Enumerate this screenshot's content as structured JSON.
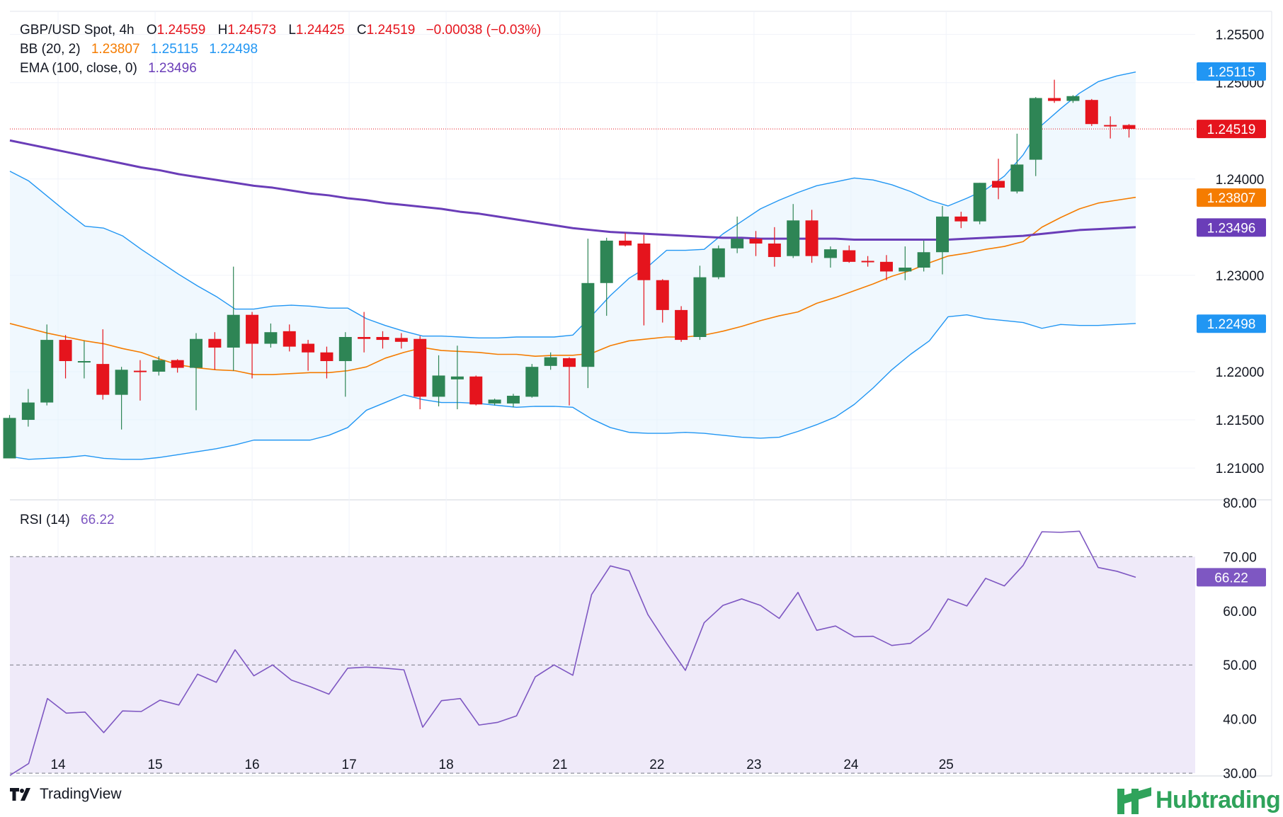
{
  "legend": {
    "symbol": "GBP/USD Spot, 4h",
    "o_label": "O",
    "o_value": "1.24559",
    "h_label": "H",
    "h_value": "1.24573",
    "l_label": "L",
    "l_value": "1.24425",
    "c_label": "C",
    "c_value": "1.24519",
    "change": "−0.00038 (−0.03%)",
    "bb_label": "BB (20, 2)",
    "bb_basis": "1.23807",
    "bb_upper": "1.25115",
    "bb_lower": "1.22498",
    "ema_label": "EMA (100, close, 0)",
    "ema_value": "1.23496",
    "rsi_label": "RSI (14)",
    "rsi_value": "66.22"
  },
  "brand": {
    "tradingview": "TradingView",
    "hubtrading": "Hubtrading"
  },
  "colors": {
    "up": "#2e8555",
    "down": "#e5141d",
    "bb_band": "#2196f3",
    "bb_basis": "#f57c00",
    "ema": "#6a3db8",
    "rsi": "#7e57c2",
    "rsi_fill": "#efeaf9",
    "last_price": "#e5141d",
    "brand_hub": "#2fa35b"
  },
  "chart_data": [
    {
      "type": "candlestick",
      "title": "GBP/USD Spot, 4h",
      "x_ticks": [
        "14",
        "15",
        "16",
        "17",
        "18",
        "21",
        "22",
        "23",
        "24",
        "25"
      ],
      "y_ticks": [
        "1.25500",
        "1.25000",
        "1.24000",
        "1.23000",
        "1.22000",
        "1.21500",
        "1.21000"
      ],
      "ylim": [
        1.2067,
        1.2574
      ],
      "price_tags": [
        {
          "label": "1.25115",
          "value": 1.25115,
          "color": "#2196f3"
        },
        {
          "label": "1.24519",
          "value": 1.24519,
          "color": "#e5141d"
        },
        {
          "label": "1.23807",
          "value": 1.23807,
          "color": "#f57c00"
        },
        {
          "label": "1.23496",
          "value": 1.23496,
          "color": "#6a3db8"
        },
        {
          "label": "1.22498",
          "value": 1.22498,
          "color": "#2196f3"
        }
      ],
      "candles": [
        {
          "o": 1.211,
          "h": 1.2155,
          "l": 1.211,
          "c": 1.2152
        },
        {
          "o": 1.215,
          "h": 1.2182,
          "l": 1.2143,
          "c": 1.2168
        },
        {
          "o": 1.2168,
          "h": 1.2249,
          "l": 1.2165,
          "c": 1.2233
        },
        {
          "o": 1.2233,
          "h": 1.2238,
          "l": 1.2193,
          "c": 1.2211
        },
        {
          "o": 1.221,
          "h": 1.2232,
          "l": 1.2193,
          "c": 1.2211
        },
        {
          "o": 1.2208,
          "h": 1.2244,
          "l": 1.2171,
          "c": 1.2176
        },
        {
          "o": 1.2176,
          "h": 1.2205,
          "l": 1.214,
          "c": 1.2202
        },
        {
          "o": 1.2201,
          "h": 1.2212,
          "l": 1.217,
          "c": 1.22
        },
        {
          "o": 1.22,
          "h": 1.2216,
          "l": 1.2196,
          "c": 1.2212
        },
        {
          "o": 1.2212,
          "h": 1.2213,
          "l": 1.2199,
          "c": 1.2204
        },
        {
          "o": 1.2204,
          "h": 1.224,
          "l": 1.216,
          "c": 1.2234
        },
        {
          "o": 1.2234,
          "h": 1.2241,
          "l": 1.2202,
          "c": 1.2225
        },
        {
          "o": 1.2225,
          "h": 1.2309,
          "l": 1.2201,
          "c": 1.2259
        },
        {
          "o": 1.2259,
          "h": 1.2262,
          "l": 1.2193,
          "c": 1.2229
        },
        {
          "o": 1.2229,
          "h": 1.225,
          "l": 1.2225,
          "c": 1.2241
        },
        {
          "o": 1.2242,
          "h": 1.2249,
          "l": 1.2221,
          "c": 1.2226
        },
        {
          "o": 1.2229,
          "h": 1.2233,
          "l": 1.2201,
          "c": 1.222
        },
        {
          "o": 1.222,
          "h": 1.2226,
          "l": 1.2193,
          "c": 1.2211
        },
        {
          "o": 1.2211,
          "h": 1.2241,
          "l": 1.2174,
          "c": 1.2236
        },
        {
          "o": 1.2236,
          "h": 1.2262,
          "l": 1.222,
          "c": 1.2234
        },
        {
          "o": 1.2236,
          "h": 1.2242,
          "l": 1.2224,
          "c": 1.2233
        },
        {
          "o": 1.2235,
          "h": 1.224,
          "l": 1.2224,
          "c": 1.2231
        },
        {
          "o": 1.2234,
          "h": 1.2237,
          "l": 1.2161,
          "c": 1.2174
        },
        {
          "o": 1.2174,
          "h": 1.2217,
          "l": 1.2164,
          "c": 1.2196
        },
        {
          "o": 1.2192,
          "h": 1.2227,
          "l": 1.2161,
          "c": 1.2195
        },
        {
          "o": 1.2195,
          "h": 1.2196,
          "l": 1.2165,
          "c": 1.2166
        },
        {
          "o": 1.2167,
          "h": 1.2172,
          "l": 1.2165,
          "c": 1.2171
        },
        {
          "o": 1.2167,
          "h": 1.2177,
          "l": 1.2163,
          "c": 1.2175
        },
        {
          "o": 1.2174,
          "h": 1.2208,
          "l": 1.2173,
          "c": 1.2205
        },
        {
          "o": 1.2206,
          "h": 1.222,
          "l": 1.2202,
          "c": 1.2215
        },
        {
          "o": 1.2214,
          "h": 1.2215,
          "l": 1.2165,
          "c": 1.2205
        },
        {
          "o": 1.2205,
          "h": 1.2338,
          "l": 1.2183,
          "c": 1.2292
        },
        {
          "o": 1.2292,
          "h": 1.2339,
          "l": 1.2258,
          "c": 1.2336
        },
        {
          "o": 1.2336,
          "h": 1.2344,
          "l": 1.233,
          "c": 1.2331
        },
        {
          "o": 1.2333,
          "h": 1.2342,
          "l": 1.2248,
          "c": 1.2295
        },
        {
          "o": 1.2295,
          "h": 1.2296,
          "l": 1.2251,
          "c": 1.2264
        },
        {
          "o": 1.2264,
          "h": 1.2268,
          "l": 1.2231,
          "c": 1.2233
        },
        {
          "o": 1.2236,
          "h": 1.231,
          "l": 1.2233,
          "c": 1.2298
        },
        {
          "o": 1.2298,
          "h": 1.2331,
          "l": 1.2296,
          "c": 1.2328
        },
        {
          "o": 1.2328,
          "h": 1.2361,
          "l": 1.2323,
          "c": 1.2338
        },
        {
          "o": 1.2338,
          "h": 1.2346,
          "l": 1.232,
          "c": 1.2333
        },
        {
          "o": 1.2333,
          "h": 1.235,
          "l": 1.2309,
          "c": 1.2319
        },
        {
          "o": 1.232,
          "h": 1.2374,
          "l": 1.2318,
          "c": 1.2357
        },
        {
          "o": 1.2357,
          "h": 1.2368,
          "l": 1.2313,
          "c": 1.232
        },
        {
          "o": 1.2318,
          "h": 1.233,
          "l": 1.2308,
          "c": 1.2327
        },
        {
          "o": 1.2326,
          "h": 1.2331,
          "l": 1.2313,
          "c": 1.2314
        },
        {
          "o": 1.2315,
          "h": 1.232,
          "l": 1.2309,
          "c": 1.2314
        },
        {
          "o": 1.2314,
          "h": 1.2321,
          "l": 1.2295,
          "c": 1.2304
        },
        {
          "o": 1.2304,
          "h": 1.233,
          "l": 1.2295,
          "c": 1.2308
        },
        {
          "o": 1.2308,
          "h": 1.2336,
          "l": 1.2304,
          "c": 1.2324
        },
        {
          "o": 1.2324,
          "h": 1.2372,
          "l": 1.2301,
          "c": 1.2361
        },
        {
          "o": 1.2361,
          "h": 1.2366,
          "l": 1.2349,
          "c": 1.2356
        },
        {
          "o": 1.2356,
          "h": 1.2396,
          "l": 1.2353,
          "c": 1.2396
        },
        {
          "o": 1.2398,
          "h": 1.2421,
          "l": 1.2379,
          "c": 1.2391
        },
        {
          "o": 1.2387,
          "h": 1.2447,
          "l": 1.2385,
          "c": 1.2415
        },
        {
          "o": 1.242,
          "h": 1.2485,
          "l": 1.2403,
          "c": 1.2484
        },
        {
          "o": 1.2484,
          "h": 1.2503,
          "l": 1.2479,
          "c": 1.2481
        },
        {
          "o": 1.2481,
          "h": 1.2487,
          "l": 1.2479,
          "c": 1.2486
        },
        {
          "o": 1.2482,
          "h": 1.2483,
          "l": 1.2455,
          "c": 1.2457
        },
        {
          "o": 1.2456,
          "h": 1.2465,
          "l": 1.2442,
          "c": 1.2455
        },
        {
          "o": 1.2456,
          "h": 1.2457,
          "l": 1.2443,
          "c": 1.2452
        }
      ],
      "series": [
        {
          "name": "BB (20, 2)",
          "values": [
            1.2408,
            1.2398,
            1.2382,
            1.2366,
            1.2351,
            1.2349,
            1.2341,
            1.2327,
            1.2314,
            1.2301,
            1.2289,
            1.2278,
            1.2265,
            1.2265,
            1.2268,
            1.2269,
            1.2268,
            1.2266,
            1.2266,
            1.2255,
            1.2248,
            1.2242,
            1.2237,
            1.2237,
            1.2236,
            1.2235,
            1.2235,
            1.2236,
            1.2236,
            1.2236,
            1.2238,
            1.2258,
            1.2279,
            1.2297,
            1.2309,
            1.2326,
            1.2326,
            1.2327,
            1.2343,
            1.2356,
            1.2369,
            1.2378,
            1.2386,
            1.2393,
            1.2397,
            1.2401,
            1.2399,
            1.2394,
            1.2387,
            1.2378,
            1.2372,
            1.238,
            1.2389,
            1.2403,
            1.2425,
            1.2456,
            1.2473,
            1.2489,
            1.2501,
            1.2507,
            1.2511
          ]
        },
        {
          "name": "BB (20, 2) basis",
          "values": [
            1.225,
            1.2245,
            1.224,
            1.2236,
            1.2232,
            1.2229,
            1.2224,
            1.222,
            1.2213,
            1.2207,
            1.2204,
            1.2202,
            1.2201,
            1.2197,
            1.2197,
            1.2198,
            1.2199,
            1.2199,
            1.2201,
            1.2205,
            1.2214,
            1.222,
            1.2225,
            1.2222,
            1.2221,
            1.222,
            1.2218,
            1.2218,
            1.2216,
            1.2217,
            1.2217,
            1.2219,
            1.2227,
            1.2232,
            1.2234,
            1.2236,
            1.2236,
            1.2238,
            1.2242,
            1.2247,
            1.2253,
            1.2258,
            1.2262,
            1.2271,
            1.2277,
            1.2284,
            1.2291,
            1.2299,
            1.2305,
            1.2313,
            1.232,
            1.2323,
            1.2327,
            1.233,
            1.2335,
            1.235,
            1.236,
            1.2369,
            1.2375,
            1.2378,
            1.2381
          ]
        },
        {
          "name": "BB (20, 2) lower",
          "values": [
            1.2112,
            1.2109,
            1.211,
            1.2111,
            1.2113,
            1.211,
            1.2109,
            1.2109,
            1.2111,
            1.2114,
            1.2117,
            1.212,
            1.2124,
            1.2129,
            1.2129,
            1.2129,
            1.2129,
            1.2134,
            1.2142,
            1.216,
            1.2168,
            1.2176,
            1.2171,
            1.2168,
            1.2168,
            1.2167,
            1.2165,
            1.2163,
            1.2164,
            1.2164,
            1.2163,
            1.2151,
            1.2142,
            1.2137,
            1.2136,
            1.2136,
            1.2137,
            1.2136,
            1.2134,
            1.2132,
            1.2131,
            1.2132,
            1.2138,
            1.2145,
            1.2153,
            1.2166,
            1.2183,
            1.2202,
            1.2218,
            1.2232,
            1.2257,
            1.2259,
            1.2255,
            1.2253,
            1.2251,
            1.2245,
            1.2249,
            1.2248,
            1.2248,
            1.2249,
            1.225
          ]
        },
        {
          "name": "EMA (100, close, 0)",
          "values": [
            1.244,
            1.2436,
            1.2432,
            1.2428,
            1.2424,
            1.242,
            1.2416,
            1.2412,
            1.2409,
            1.2405,
            1.2402,
            1.2399,
            1.2396,
            1.2393,
            1.2391,
            1.2388,
            1.2385,
            1.2383,
            1.238,
            1.2378,
            1.2375,
            1.2373,
            1.2371,
            1.2369,
            1.2366,
            1.2364,
            1.2361,
            1.2358,
            1.2355,
            1.2352,
            1.2349,
            1.2347,
            1.2345,
            1.2344,
            1.2343,
            1.2342,
            1.2341,
            1.234,
            1.2339,
            1.2339,
            1.2338,
            1.2338,
            1.2338,
            1.2338,
            1.2338,
            1.2337,
            1.2337,
            1.2337,
            1.2337,
            1.2337,
            1.2337,
            1.2338,
            1.2339,
            1.234,
            1.2341,
            1.2343,
            1.2345,
            1.2347,
            1.2348,
            1.2349,
            1.235
          ]
        }
      ]
    },
    {
      "type": "line",
      "title": "RSI (14)",
      "y_ticks": [
        "80.00",
        "70.00",
        "60.00",
        "50.00",
        "40.00",
        "30.00"
      ],
      "ylim": [
        29.5,
        80.5
      ],
      "reference_lines": [
        70,
        50,
        30
      ],
      "series": [
        {
          "name": "RSI (14)",
          "values": [
            29.6,
            31.8,
            43.8,
            41.1,
            41.3,
            37.5,
            41.5,
            41.4,
            43.5,
            42.6,
            48.3,
            46.8,
            52.8,
            48.0,
            50.0,
            47.2,
            46.0,
            44.6,
            49.4,
            49.6,
            49.4,
            49.1,
            38.5,
            43.4,
            43.8,
            38.9,
            39.4,
            40.6,
            47.8,
            50.0,
            48.1,
            63.0,
            68.3,
            67.4,
            59.3,
            54.0,
            49.0,
            57.8,
            61.0,
            62.2,
            61.0,
            58.6,
            63.4,
            56.4,
            57.2,
            55.2,
            55.3,
            53.6,
            54.0,
            56.6,
            62.2,
            60.9,
            66.0,
            64.6,
            68.4,
            74.6,
            74.5,
            74.7,
            68.0,
            67.3,
            66.2
          ]
        }
      ]
    }
  ]
}
